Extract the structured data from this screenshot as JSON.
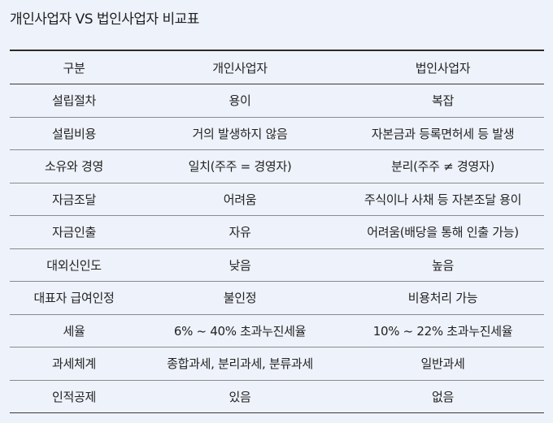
{
  "title": "개인사업자 VS 법인사업자 비교표",
  "table": {
    "headers": [
      "구분",
      "개인사업자",
      "법인사업자"
    ],
    "rows": [
      [
        "설립절차",
        "용이",
        "복잡"
      ],
      [
        "설립비용",
        "거의 발생하지 않음",
        "자본금과 등록면허세 등 발생"
      ],
      [
        "소유와 경영",
        "일치(주주 = 경영자)",
        "분리(주주 ≠ 경영자)"
      ],
      [
        "자금조달",
        "어려움",
        "주식이나 사채 등 자본조달 용이"
      ],
      [
        "자금인출",
        "자유",
        "어려움(배당을 통해 인출 가능)"
      ],
      [
        "대외신인도",
        "낮음",
        "높음"
      ],
      [
        "대표자 급여인정",
        "불인정",
        "비용처리 가능"
      ],
      [
        "세율",
        "6% ~ 40% 초과누진세율",
        "10% ~ 22% 초과누진세율"
      ],
      [
        "과세체계",
        "종합과세, 분리과세, 분류과세",
        "일반과세"
      ],
      [
        "인적공제",
        "있음",
        "없음"
      ]
    ]
  }
}
